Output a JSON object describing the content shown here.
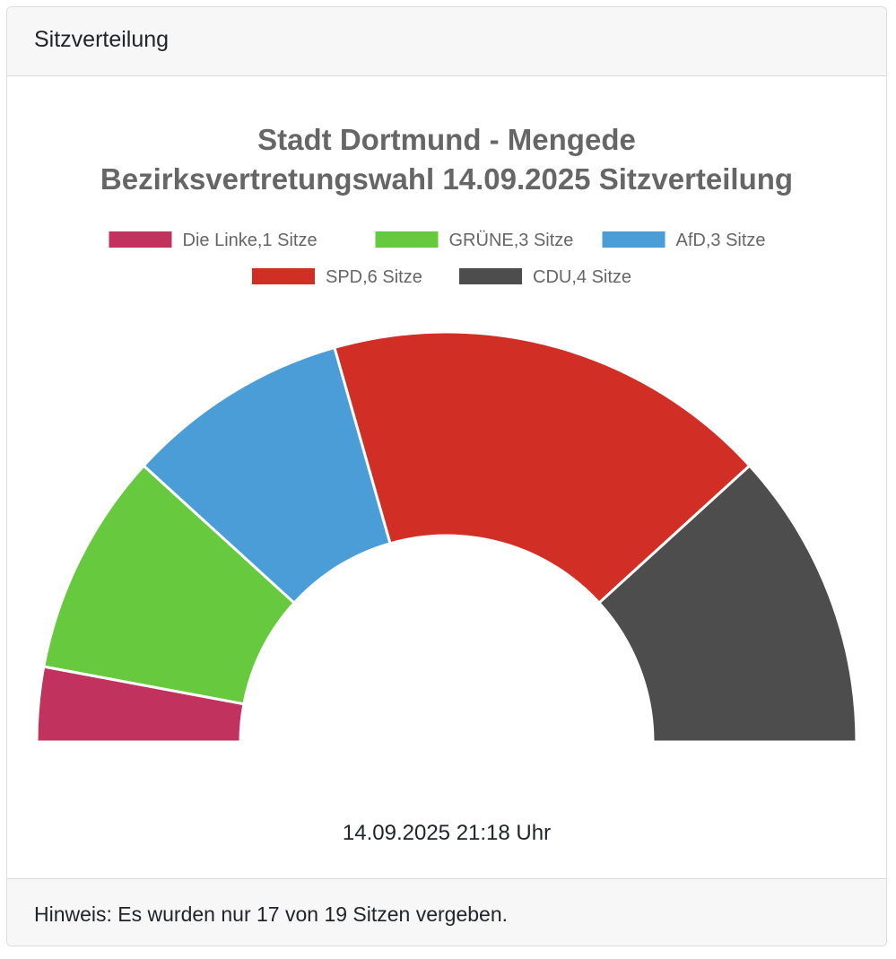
{
  "card": {
    "header": "Sitzverteilung",
    "timestamp": "14.09.2025 21:18 Uhr",
    "footer": "Hinweis: Es wurden nur 17 von 19 Sitzen vergeben."
  },
  "chart_data": {
    "type": "pie",
    "subtype": "half-doughnut",
    "title_lines": [
      "Stadt Dortmund - Mengede",
      "Bezirksvertretungswahl 14.09.2025 Sitzverteilung"
    ],
    "legend_position": "top",
    "series": [
      {
        "name": "Die Linke",
        "value": 1,
        "label": "Die Linke,1 Sitze",
        "color": "#c1325f"
      },
      {
        "name": "GRÜNE",
        "value": 3,
        "label": "GRÜNE,3 Sitze",
        "color": "#66c93e"
      },
      {
        "name": "AfD",
        "value": 3,
        "label": "AfD,3 Sitze",
        "color": "#4a9dd6"
      },
      {
        "name": "SPD",
        "value": 6,
        "label": "SPD,6 Sitze",
        "color": "#d12e25"
      },
      {
        "name": "CDU",
        "value": 4,
        "label": "CDU,4 Sitze",
        "color": "#4d4d4d"
      }
    ]
  }
}
